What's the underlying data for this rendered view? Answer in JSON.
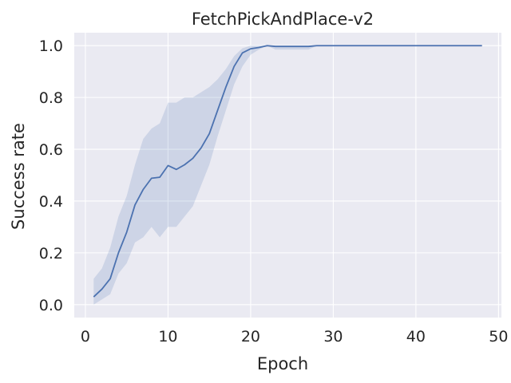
{
  "chart_data": {
    "type": "line",
    "title": "FetchPickAndPlace-v2",
    "xlabel": "Epoch",
    "ylabel": "Success rate",
    "xlim": [
      -1.35,
      50.35
    ],
    "ylim": [
      -0.05,
      1.05
    ],
    "xticks": [
      0,
      10,
      20,
      30,
      40,
      50
    ],
    "yticks": [
      0.0,
      0.2,
      0.4,
      0.6,
      0.8,
      1.0
    ],
    "xtick_labels": [
      "0",
      "10",
      "20",
      "30",
      "40",
      "50"
    ],
    "ytick_labels": [
      "0.0",
      "0.2",
      "0.4",
      "0.6",
      "0.8",
      "1.0"
    ],
    "grid": true,
    "legend": "none",
    "colors": {
      "background": "#eaeaf2",
      "grid": "#ffffff",
      "line": "#4c72b0",
      "band": "#4c72b0"
    },
    "series": [
      {
        "x": [
          1,
          2,
          3,
          4,
          5,
          6,
          7,
          8,
          9,
          10,
          11,
          12,
          13,
          14,
          15,
          16,
          17,
          18,
          19,
          20,
          21,
          22,
          23,
          24,
          25,
          26,
          27,
          28,
          29,
          30,
          31,
          32,
          33,
          34,
          35,
          36,
          37,
          38,
          39,
          40,
          41,
          42,
          43,
          44,
          45,
          46,
          47,
          48
        ],
        "y": [
          0.03,
          0.06,
          0.1,
          0.2,
          0.28,
          0.385,
          0.445,
          0.488,
          0.492,
          0.537,
          0.522,
          0.54,
          0.565,
          0.605,
          0.66,
          0.75,
          0.84,
          0.92,
          0.972,
          0.988,
          0.993,
          1.0,
          0.997,
          0.997,
          0.997,
          0.997,
          0.997,
          1.0,
          1.0,
          1.0,
          1.0,
          1.0,
          1.0,
          1.0,
          1.0,
          1.0,
          1.0,
          1.0,
          1.0,
          1.0,
          1.0,
          1.0,
          1.0,
          1.0,
          1.0,
          1.0,
          1.0,
          1.0
        ],
        "lower": [
          0.0,
          0.02,
          0.04,
          0.12,
          0.16,
          0.24,
          0.26,
          0.3,
          0.26,
          0.3,
          0.3,
          0.34,
          0.38,
          0.46,
          0.54,
          0.65,
          0.75,
          0.85,
          0.92,
          0.965,
          0.985,
          1.0,
          0.985,
          0.985,
          0.985,
          0.985,
          0.985,
          1.0,
          1.0,
          1.0,
          1.0,
          1.0,
          1.0,
          1.0,
          1.0,
          1.0,
          1.0,
          1.0,
          1.0,
          1.0,
          1.0,
          1.0,
          1.0,
          1.0,
          1.0,
          1.0,
          1.0,
          1.0
        ],
        "upper": [
          0.1,
          0.14,
          0.22,
          0.34,
          0.42,
          0.54,
          0.64,
          0.68,
          0.7,
          0.78,
          0.78,
          0.8,
          0.8,
          0.82,
          0.84,
          0.87,
          0.91,
          0.96,
          0.99,
          1.0,
          1.0,
          1.0,
          1.0,
          1.0,
          1.0,
          1.0,
          1.0,
          1.0,
          1.0,
          1.0,
          1.0,
          1.0,
          1.0,
          1.0,
          1.0,
          1.0,
          1.0,
          1.0,
          1.0,
          1.0,
          1.0,
          1.0,
          1.0,
          1.0,
          1.0,
          1.0,
          1.0,
          1.0
        ]
      }
    ]
  }
}
